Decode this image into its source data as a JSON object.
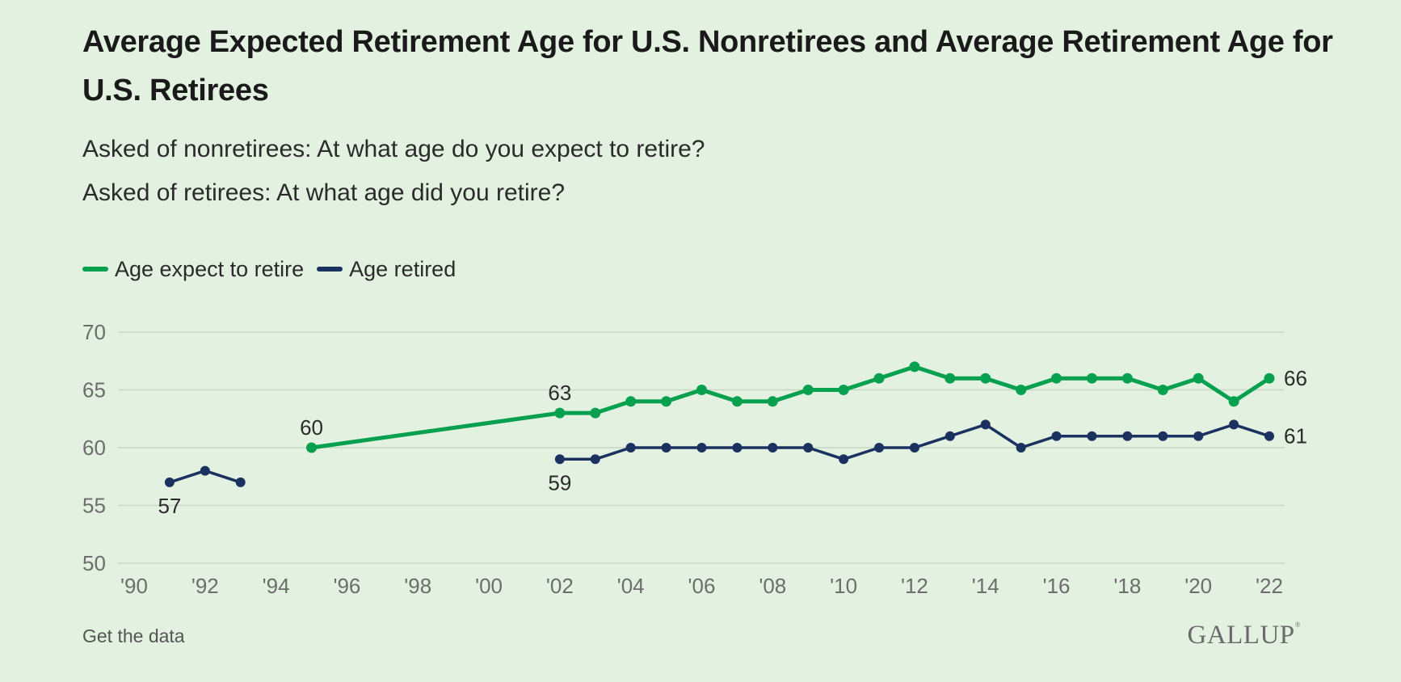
{
  "title": "Average Expected Retirement Age for U.S. Nonretirees and Average Retirement Age for U.S. Retirees",
  "subtitle_lines": [
    "Asked of nonretirees: At what age do you expect to retire?",
    "Asked of retirees: At what age did you retire?"
  ],
  "footer": {
    "link_label": "Get the data",
    "brand": "GALLUP",
    "brand_mark": "®"
  },
  "colors": {
    "background": "#e3f1e1",
    "green": "#06a04f",
    "navy": "#1b3260",
    "grid": "#c7d8c5",
    "axis_text": "#6d6d6d"
  },
  "chart_data": {
    "type": "line",
    "ylim": [
      50,
      70
    ],
    "yticks": [
      50,
      55,
      60,
      65,
      70
    ],
    "xlim": [
      1990,
      2022
    ],
    "xticks": [
      {
        "year": 1990,
        "label": "'90"
      },
      {
        "year": 1992,
        "label": "'92"
      },
      {
        "year": 1994,
        "label": "'94"
      },
      {
        "year": 1996,
        "label": "'96"
      },
      {
        "year": 1998,
        "label": "'98"
      },
      {
        "year": 2000,
        "label": "'00"
      },
      {
        "year": 2002,
        "label": "'02"
      },
      {
        "year": 2004,
        "label": "'04"
      },
      {
        "year": 2006,
        "label": "'06"
      },
      {
        "year": 2008,
        "label": "'08"
      },
      {
        "year": 2010,
        "label": "'10"
      },
      {
        "year": 2012,
        "label": "'12"
      },
      {
        "year": 2014,
        "label": "'14"
      },
      {
        "year": 2016,
        "label": "'16"
      },
      {
        "year": 2018,
        "label": "'18"
      },
      {
        "year": 2020,
        "label": "'20"
      },
      {
        "year": 2022,
        "label": "'22"
      }
    ],
    "grid": true,
    "legend_position": "top-left",
    "series": [
      {
        "name": "Age expect to retire",
        "color": "#06a04f",
        "segments": [
          [
            [
              1995,
              60
            ],
            [
              2002,
              63
            ],
            [
              2003,
              63
            ],
            [
              2004,
              64
            ],
            [
              2005,
              64
            ],
            [
              2006,
              65
            ],
            [
              2007,
              64
            ],
            [
              2008,
              64
            ],
            [
              2009,
              65
            ],
            [
              2010,
              65
            ],
            [
              2011,
              66
            ],
            [
              2012,
              67
            ],
            [
              2013,
              66
            ],
            [
              2014,
              66
            ],
            [
              2015,
              65
            ],
            [
              2016,
              66
            ],
            [
              2017,
              66
            ],
            [
              2018,
              66
            ],
            [
              2019,
              65
            ],
            [
              2020,
              66
            ],
            [
              2021,
              64
            ],
            [
              2022,
              66
            ]
          ]
        ],
        "labels": [
          {
            "x": 1995,
            "y": 60,
            "text": "60",
            "pos": "above"
          },
          {
            "x": 2002,
            "y": 63,
            "text": "63",
            "pos": "above"
          },
          {
            "x": 2022,
            "y": 66,
            "text": "66",
            "pos": "right"
          }
        ]
      },
      {
        "name": "Age retired",
        "color": "#1b3260",
        "segments": [
          [
            [
              1991,
              57
            ],
            [
              1992,
              58
            ],
            [
              1993,
              57
            ]
          ],
          [
            [
              2002,
              59
            ],
            [
              2003,
              59
            ],
            [
              2004,
              60
            ],
            [
              2005,
              60
            ],
            [
              2006,
              60
            ],
            [
              2007,
              60
            ],
            [
              2008,
              60
            ],
            [
              2009,
              60
            ],
            [
              2010,
              59
            ],
            [
              2011,
              60
            ],
            [
              2012,
              60
            ],
            [
              2013,
              61
            ],
            [
              2014,
              62
            ],
            [
              2015,
              60
            ],
            [
              2016,
              61
            ],
            [
              2017,
              61
            ],
            [
              2018,
              61
            ],
            [
              2019,
              61
            ],
            [
              2020,
              61
            ],
            [
              2021,
              62
            ],
            [
              2022,
              61
            ]
          ]
        ],
        "labels": [
          {
            "x": 1991,
            "y": 57,
            "text": "57",
            "pos": "below"
          },
          {
            "x": 2002,
            "y": 59,
            "text": "59",
            "pos": "below"
          },
          {
            "x": 2022,
            "y": 61,
            "text": "61",
            "pos": "right"
          }
        ]
      }
    ]
  }
}
